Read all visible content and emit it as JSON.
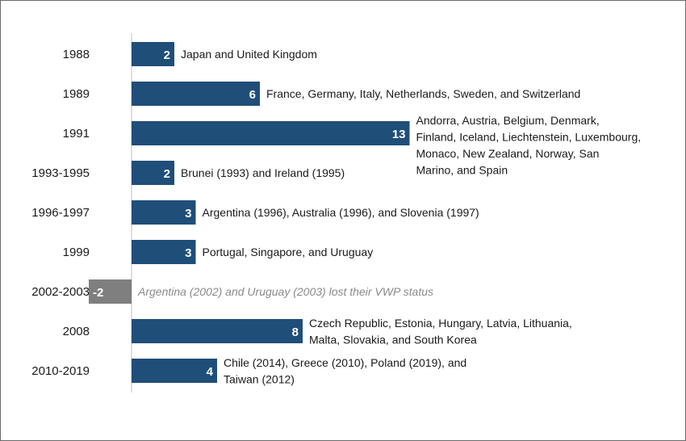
{
  "chart_data": {
    "type": "bar",
    "orientation": "horizontal",
    "categories": [
      "1988",
      "1989",
      "1991",
      "1993-1995",
      "1996-1997",
      "1999",
      "2002-2003",
      "2008",
      "2010-2019"
    ],
    "values": [
      2,
      6,
      13,
      2,
      3,
      3,
      -2,
      8,
      4
    ],
    "value_labels": [
      "2",
      "6",
      "13",
      "2",
      "3",
      "3",
      "-2",
      "8",
      "4"
    ],
    "annotations": [
      [
        "Japan and United Kingdom"
      ],
      [
        "France,  Germany, Italy, Netherlands,  Sweden,  and Switzerland"
      ],
      [
        "Andorra,  Austria, Belgium,  Denmark,",
        "Finland, Iceland,  Liechtenstein, Luxembourg,",
        "Monaco, New Zealand,  Norway,  San",
        "Marino, and Spain"
      ],
      [
        "Brunei (1993) and Ireland (1995)"
      ],
      [
        "Argentina (1996),  Australia (1996), and Slovenia (1997)"
      ],
      [
        "Portugal, Singapore, and Uruguay"
      ],
      [
        "Argentina (2002) and Uruguay (2003) lost their VWP status"
      ],
      [
        "Czech Republic, Estonia, Hungary, Latvia, Lithuania,",
        "Malta, Slovakia, and South Korea"
      ],
      [
        "Chile (2014), Greece (2010), Poland (2019), and",
        "Taiwan (2012)"
      ]
    ],
    "colors": {
      "positive": "#1f4e79",
      "negative": "#7f7f7f"
    },
    "xlim": [
      0,
      13
    ],
    "title": "",
    "xlabel": "",
    "ylabel": "",
    "grid": false,
    "legend": "none"
  }
}
